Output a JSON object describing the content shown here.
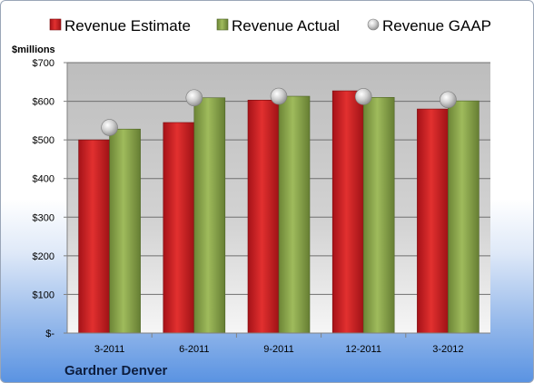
{
  "chart_data": {
    "type": "bar",
    "title": "",
    "xlabel": "",
    "ylabel": "$millions",
    "ylim": [
      0,
      700
    ],
    "yticks": [
      0,
      100,
      200,
      300,
      400,
      500,
      600,
      700
    ],
    "ytick_labels": [
      "$-",
      "$100",
      "$200",
      "$300",
      "$400",
      "$500",
      "$600",
      "$700"
    ],
    "categories": [
      "3-2011",
      "6-2011",
      "9-2011",
      "12-2011",
      "3-2012"
    ],
    "series": [
      {
        "name": "Revenue Estimate",
        "type": "bar",
        "color": "#d0232a",
        "values": [
          500,
          545,
          603,
          627,
          580
        ]
      },
      {
        "name": "Revenue Actual",
        "type": "bar",
        "color": "#8faa4c",
        "values": [
          528,
          609,
          613,
          610,
          601
        ]
      },
      {
        "name": "Revenue GAAP",
        "type": "marker",
        "color": "#c8c8c8",
        "values": [
          532,
          609,
          613,
          612,
          604
        ]
      }
    ],
    "grid": true,
    "legend": "top",
    "footer": "Gardner Denver"
  }
}
